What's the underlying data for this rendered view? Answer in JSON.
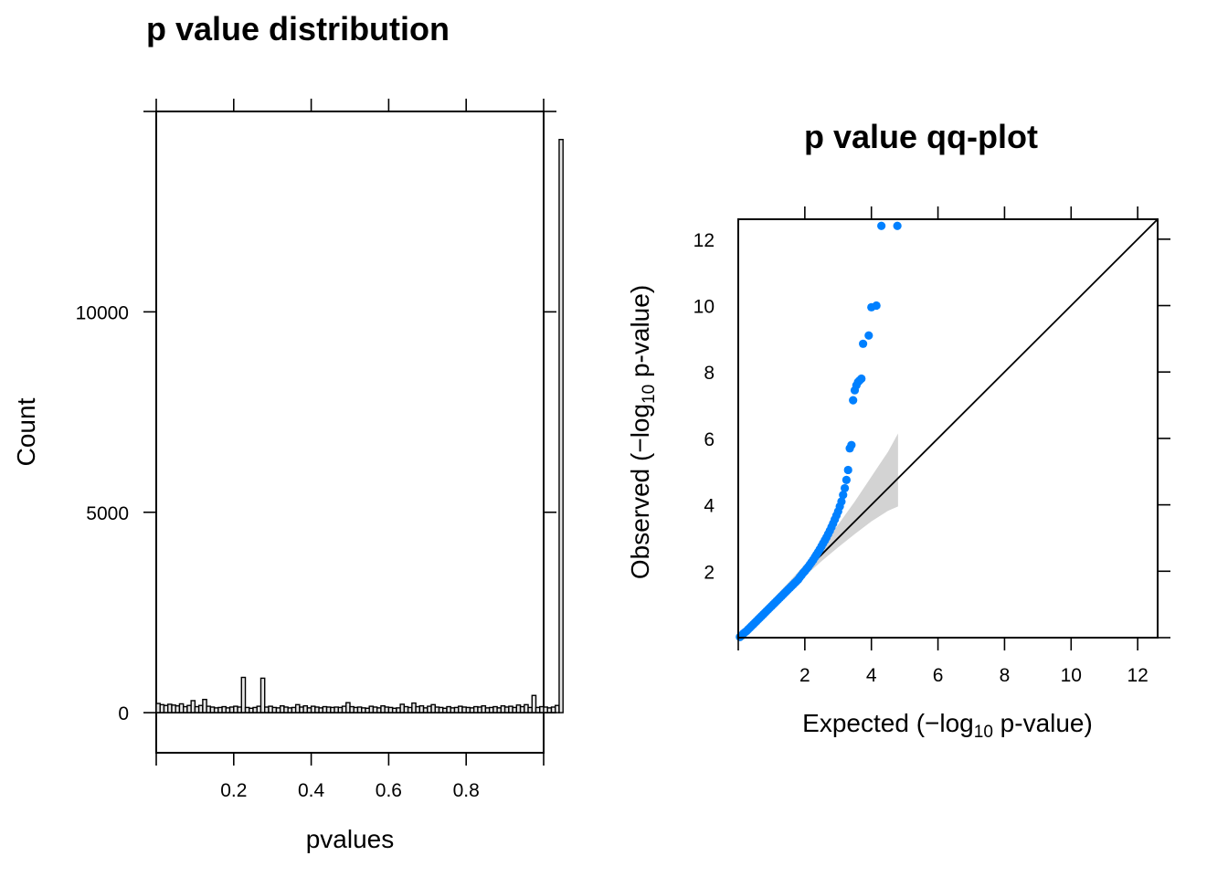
{
  "chart_data": [
    {
      "type": "bar",
      "title": "p value distribution",
      "xlabel": "pvalues",
      "ylabel": "Count",
      "xlim": [
        0,
        1
      ],
      "ylim": [
        -1000,
        15000
      ],
      "x_ticks": [
        0.2,
        0.4,
        0.6,
        0.8
      ],
      "x_tick_labels": [
        "0.2",
        "0.4",
        "0.6",
        "0.8"
      ],
      "y_ticks": [
        0,
        5000,
        10000
      ],
      "y_tick_labels": [
        "0",
        "5000",
        "10000"
      ],
      "bin_width": 0.01,
      "values": [
        230,
        200,
        180,
        210,
        190,
        170,
        220,
        150,
        180,
        300,
        150,
        180,
        330,
        160,
        140,
        120,
        130,
        150,
        120,
        140,
        160,
        140,
        880,
        130,
        110,
        130,
        160,
        860,
        140,
        160,
        130,
        120,
        170,
        140,
        120,
        130,
        200,
        140,
        170,
        120,
        160,
        140,
        120,
        150,
        140,
        130,
        140,
        130,
        160,
        250,
        150,
        130,
        140,
        120,
        110,
        160,
        140,
        120,
        170,
        140,
        130,
        110,
        120,
        210,
        150,
        130,
        240,
        150,
        170,
        120,
        160,
        200,
        140,
        130,
        110,
        150,
        120,
        130,
        160,
        140,
        130,
        120,
        150,
        140,
        170,
        120,
        130,
        150,
        120,
        170,
        140,
        160,
        130,
        190,
        150,
        200,
        130,
        430,
        130,
        150,
        140,
        120,
        140,
        180,
        14300
      ],
      "bar_fill": "#e6e6e6",
      "grid": false
    },
    {
      "type": "scatter",
      "title": "p value qq-plot",
      "xlabel": "Expected (−log10 p-value)",
      "ylabel": "Observed (−log10 p-value)",
      "xlim": [
        0,
        12.6
      ],
      "ylim": [
        0,
        12.6
      ],
      "x_ticks": [
        2,
        4,
        6,
        8,
        10,
        12
      ],
      "x_tick_labels": [
        "2",
        "4",
        "6",
        "8",
        "10",
        "12"
      ],
      "y_ticks": [
        2,
        4,
        6,
        8,
        10,
        12
      ],
      "y_tick_labels": [
        "2",
        "4",
        "6",
        "8",
        "10",
        "12"
      ],
      "reference_line": "y = x",
      "point_color": "#0080ff",
      "band_color": "#d3d3d3",
      "confidence_band": {
        "x": [
          0.0,
          0.5,
          1.0,
          1.5,
          2.0,
          2.5,
          3.0,
          3.5,
          4.0,
          4.5,
          4.8
        ],
        "lower": [
          0.0,
          0.42,
          0.9,
          1.38,
          1.85,
          2.3,
          2.72,
          3.12,
          3.5,
          3.82,
          3.95
        ],
        "upper": [
          0.05,
          0.6,
          1.12,
          1.65,
          2.2,
          2.78,
          3.4,
          4.1,
          4.85,
          5.6,
          6.15
        ]
      },
      "points": {
        "x": [
          0.05,
          0.1,
          0.15,
          0.2,
          0.25,
          0.3,
          0.35,
          0.4,
          0.45,
          0.5,
          0.55,
          0.6,
          0.65,
          0.7,
          0.75,
          0.8,
          0.85,
          0.9,
          0.95,
          1.0,
          1.05,
          1.1,
          1.15,
          1.2,
          1.25,
          1.3,
          1.35,
          1.4,
          1.45,
          1.5,
          1.55,
          1.6,
          1.65,
          1.7,
          1.75,
          1.8,
          1.85,
          1.9,
          1.95,
          2.0,
          2.05,
          2.1,
          2.15,
          2.2,
          2.25,
          2.3,
          2.35,
          2.4,
          2.45,
          2.5,
          2.55,
          2.6,
          2.65,
          2.7,
          2.75,
          2.8,
          2.85,
          2.9,
          2.95,
          3.0,
          3.05,
          3.1,
          3.15,
          3.2,
          3.25,
          3.3,
          3.35,
          3.4,
          3.45,
          3.5,
          3.55,
          3.6,
          3.65,
          3.7,
          3.75,
          3.92,
          4.0,
          4.15,
          4.3,
          4.78
        ],
        "y": [
          0.02,
          0.06,
          0.12,
          0.16,
          0.2,
          0.25,
          0.3,
          0.35,
          0.4,
          0.45,
          0.5,
          0.55,
          0.6,
          0.65,
          0.7,
          0.75,
          0.8,
          0.85,
          0.9,
          0.95,
          1.0,
          1.05,
          1.1,
          1.15,
          1.2,
          1.25,
          1.3,
          1.35,
          1.4,
          1.45,
          1.5,
          1.55,
          1.6,
          1.65,
          1.7,
          1.75,
          1.82,
          1.88,
          1.95,
          2.0,
          2.07,
          2.13,
          2.2,
          2.27,
          2.34,
          2.42,
          2.5,
          2.58,
          2.66,
          2.75,
          2.84,
          2.93,
          3.02,
          3.12,
          3.22,
          3.33,
          3.44,
          3.56,
          3.68,
          3.8,
          3.95,
          4.1,
          4.3,
          4.5,
          4.75,
          5.05,
          5.7,
          5.8,
          7.15,
          7.45,
          7.6,
          7.7,
          7.75,
          7.8,
          8.85,
          9.1,
          9.95,
          10.0,
          12.4,
          12.4
        ],
        "note_points": []
      }
    }
  ]
}
